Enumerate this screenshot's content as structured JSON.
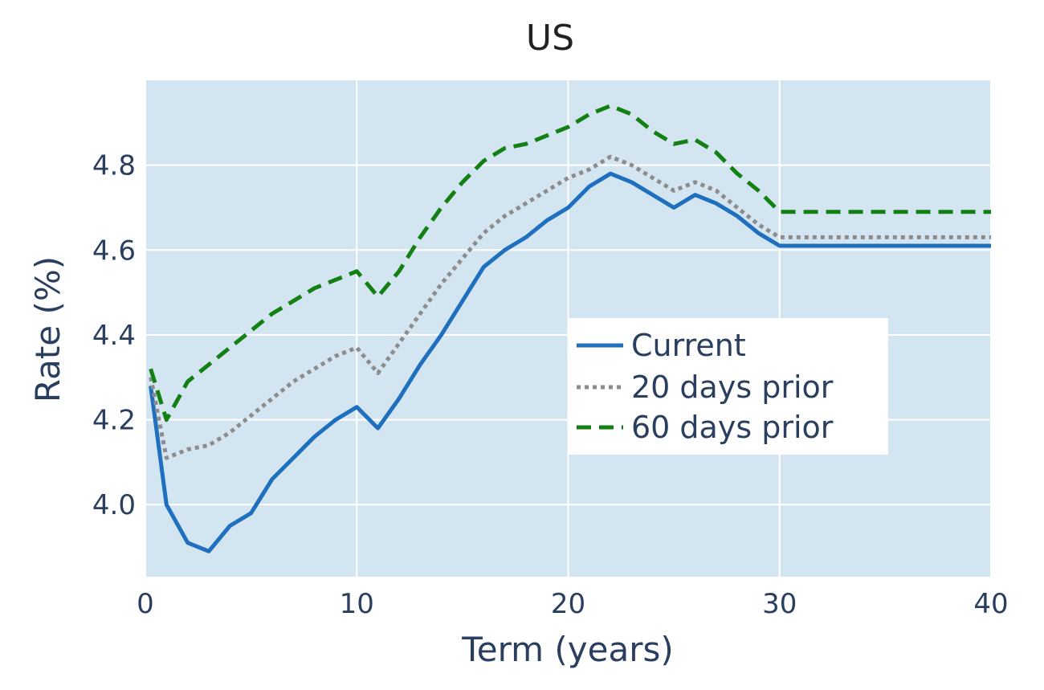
{
  "chart_data": {
    "type": "line",
    "title": "US",
    "xlabel": "Term (years)",
    "ylabel": "Rate (%)",
    "xlim": [
      0,
      40
    ],
    "ylim": [
      3.83,
      5.0
    ],
    "x_ticks": [
      0,
      10,
      20,
      30,
      40
    ],
    "x_tick_labels": [
      "0",
      "10",
      "20",
      "30",
      "40"
    ],
    "y_ticks": [
      4.0,
      4.2,
      4.4,
      4.6,
      4.8
    ],
    "y_tick_labels": [
      "4.0",
      "4.2",
      "4.4",
      "4.6",
      "4.8"
    ],
    "grid": true,
    "legend_position": "center-right",
    "plot_background": "#d4e5f2",
    "series": [
      {
        "name": "Current",
        "color": "#1f6fbf",
        "style": "solid",
        "x": [
          0.25,
          1,
          2,
          3,
          4,
          5,
          6,
          7,
          8,
          9,
          10,
          11,
          12,
          13,
          14,
          15,
          16,
          17,
          18,
          19,
          20,
          21,
          22,
          23,
          24,
          25,
          26,
          27,
          28,
          29,
          30,
          40
        ],
        "y": [
          4.28,
          4.0,
          3.91,
          3.89,
          3.95,
          3.98,
          4.06,
          4.11,
          4.16,
          4.2,
          4.23,
          4.18,
          4.25,
          4.33,
          4.4,
          4.48,
          4.56,
          4.6,
          4.63,
          4.67,
          4.7,
          4.75,
          4.78,
          4.76,
          4.73,
          4.7,
          4.73,
          4.71,
          4.68,
          4.64,
          4.61,
          4.61
        ]
      },
      {
        "name": "20 days prior",
        "color": "#8c8c8c",
        "style": "dotted",
        "x": [
          0.25,
          1,
          2,
          3,
          4,
          5,
          6,
          7,
          8,
          9,
          10,
          11,
          12,
          13,
          14,
          15,
          16,
          17,
          18,
          19,
          20,
          21,
          22,
          23,
          24,
          25,
          26,
          27,
          28,
          29,
          30,
          40
        ],
        "y": [
          4.3,
          4.11,
          4.13,
          4.14,
          4.17,
          4.21,
          4.25,
          4.29,
          4.32,
          4.35,
          4.37,
          4.31,
          4.38,
          4.45,
          4.52,
          4.58,
          4.64,
          4.68,
          4.71,
          4.74,
          4.77,
          4.79,
          4.82,
          4.8,
          4.77,
          4.74,
          4.76,
          4.74,
          4.7,
          4.66,
          4.63,
          4.63
        ]
      },
      {
        "name": "60 days prior",
        "color": "#138013",
        "style": "dashed",
        "x": [
          0.25,
          1,
          2,
          3,
          4,
          5,
          6,
          7,
          8,
          9,
          10,
          11,
          12,
          13,
          14,
          15,
          16,
          17,
          18,
          19,
          20,
          21,
          22,
          23,
          24,
          25,
          26,
          27,
          28,
          29,
          30,
          40
        ],
        "y": [
          4.32,
          4.2,
          4.29,
          4.33,
          4.37,
          4.41,
          4.45,
          4.48,
          4.51,
          4.53,
          4.55,
          4.49,
          4.55,
          4.63,
          4.7,
          4.76,
          4.81,
          4.84,
          4.85,
          4.87,
          4.89,
          4.92,
          4.94,
          4.92,
          4.88,
          4.85,
          4.86,
          4.83,
          4.78,
          4.74,
          4.69,
          4.69
        ]
      }
    ]
  }
}
